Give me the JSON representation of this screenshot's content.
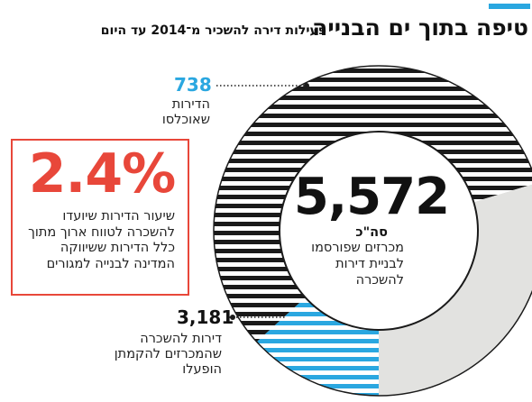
{
  "header": {
    "title": "טיפה בתוך ים הבנייה",
    "subtitle": "פעילות דירה להשכיר מ־2014 עד היום"
  },
  "callout": {
    "value": "2.4%",
    "text": "שיעור הדירות שיועדו להשכרה לטווח ארוך מתוך כלל הדירות ששיווקה המדינה לבנייה למגורים"
  },
  "total": {
    "value": "5,572",
    "label": "סה\"כ",
    "desc": "מכרזים שפורסמו לבניית דירות להשכרה"
  },
  "labels": {
    "occupied_value": "738",
    "occupied_desc": "הדירות שאוכלסו",
    "started_value": "3,181",
    "started_desc": "דירות להשכרה שהמכרזים להקמתן הופעלו"
  },
  "colors": {
    "accent": "#2aa7e0",
    "callout": "#e8473a",
    "stripe_dark": "#1a1a1a",
    "remainder": "#e2e2e0"
  },
  "chart_data": {
    "type": "pie",
    "total": 5572,
    "slices": [
      {
        "label": "הדירות שאוכלסו",
        "value": 738,
        "color": "#2aa7e0",
        "pattern": "stripes"
      },
      {
        "label": "דירות להשכרה שהמכרזים להקמתן הופעלו",
        "value": 3181,
        "color": "#1a1a1a",
        "pattern": "stripes"
      },
      {
        "label": "remainder",
        "value": 1653,
        "color": "#e2e2e0",
        "pattern": "solid"
      }
    ]
  }
}
